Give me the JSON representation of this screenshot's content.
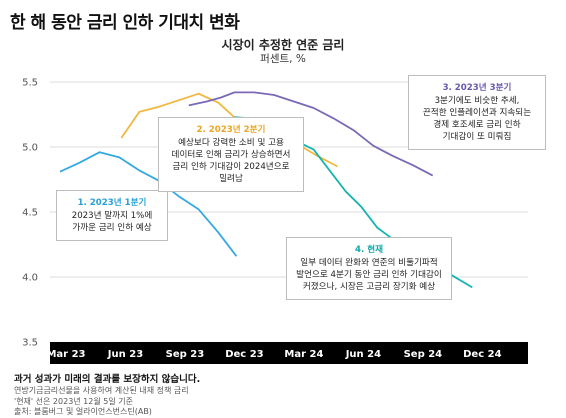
{
  "title": "한 해 동안 금리 인하 기대치 변화",
  "chart_data": {
    "type": "line",
    "title": "시장이 추정한 연준 금리",
    "unit": "퍼센트, %",
    "ylim": [
      3.5,
      5.5
    ],
    "yticks": [
      "3.5",
      "4.0",
      "4.5",
      "5.0",
      "5.5"
    ],
    "xlim": [
      0,
      23
    ],
    "xticks": [
      {
        "x": 0,
        "label": "Mar 23"
      },
      {
        "x": 3,
        "label": "Jun 23"
      },
      {
        "x": 6,
        "label": "Sep 23"
      },
      {
        "x": 9,
        "label": "Dec 23"
      },
      {
        "x": 12,
        "label": "Mar 24"
      },
      {
        "x": 15,
        "label": "Jun 24"
      },
      {
        "x": 18,
        "label": "Sep 24"
      },
      {
        "x": 21,
        "label": "Dec 24"
      }
    ],
    "grid": true,
    "series": [
      {
        "color": "#35a9df",
        "points": [
          [
            0.2,
            4.81
          ],
          [
            1.2,
            4.88
          ],
          [
            2.2,
            4.96
          ],
          [
            3.2,
            4.92
          ],
          [
            4.2,
            4.82
          ],
          [
            5.2,
            4.74
          ],
          [
            6.2,
            4.62
          ],
          [
            7.2,
            4.52
          ],
          [
            8.2,
            4.34
          ],
          [
            9.1,
            4.16
          ]
        ]
      },
      {
        "color": "#f1b73e",
        "points": [
          [
            3.3,
            5.07
          ],
          [
            4.2,
            5.27
          ],
          [
            5.2,
            5.31
          ],
          [
            6.2,
            5.36
          ],
          [
            7.2,
            5.41
          ],
          [
            8.2,
            5.34
          ],
          [
            9.2,
            5.2
          ],
          [
            10.2,
            5.12
          ],
          [
            11.2,
            5.08
          ],
          [
            12.2,
            5.02
          ],
          [
            13.2,
            4.93
          ],
          [
            14.2,
            4.85
          ]
        ]
      },
      {
        "color": "#7b69b6",
        "points": [
          [
            6.7,
            5.32
          ],
          [
            7.6,
            5.35
          ],
          [
            8.3,
            5.38
          ],
          [
            9.0,
            5.42
          ],
          [
            10.0,
            5.42
          ],
          [
            11.0,
            5.4
          ],
          [
            12.0,
            5.35
          ],
          [
            13.0,
            5.3
          ],
          [
            14.0,
            5.22
          ],
          [
            15.0,
            5.13
          ],
          [
            16.0,
            5.01
          ],
          [
            17.0,
            4.93
          ],
          [
            18.0,
            4.86
          ],
          [
            19.0,
            4.78
          ]
        ]
      },
      {
        "color": "#17b3b3",
        "points": [
          [
            9.0,
            5.23
          ],
          [
            9.8,
            5.22
          ],
          [
            10.6,
            5.17
          ],
          [
            11.4,
            5.1
          ],
          [
            12.2,
            5.04
          ],
          [
            13.0,
            4.98
          ],
          [
            13.8,
            4.82
          ],
          [
            14.6,
            4.66
          ],
          [
            15.4,
            4.54
          ],
          [
            16.2,
            4.38
          ],
          [
            17.0,
            4.29
          ],
          [
            18.0,
            4.22
          ],
          [
            19.0,
            4.12
          ],
          [
            20.0,
            4.01
          ],
          [
            21.0,
            3.92
          ]
        ]
      }
    ]
  },
  "annotations": [
    {
      "heading": "1. 2023년 1분기",
      "lines": [
        "2023년 말까지 1%에",
        "가까운 금리 인하 예상"
      ]
    },
    {
      "heading": "2. 2023년 2분기",
      "lines": [
        "예상보다 강력한 소비 및 고용",
        "데이터로 인해 금리가 상승하면서",
        "금리 인하 기대감이 2024년으로",
        "밀려남"
      ]
    },
    {
      "heading": "3. 2023년 3분기",
      "lines": [
        "3분기에도 비슷한 추세,",
        "끈적한 인플레이션과 지속되는",
        "경제 호조세로 금리 인하",
        "기대감이 또 미뤄짐"
      ]
    },
    {
      "heading": "4. 현재",
      "lines": [
        "일부 데이터 완화와 연준의 비둘기파적",
        "발언으로 4분기 동안 금리 인하 기대감이",
        "커졌으나, 시장은 고금리 장기화 예상"
      ]
    }
  ],
  "footer": {
    "disclaimer": "과거 성과가 미래의 결과를 보장하지 않습니다.",
    "note1": "연방기금금리선물을 사용하여 계산된 내재 정책 금리",
    "note2": "'현재' 선은 2023년 12월 5일 기준",
    "source": "출처: 블룸버그 및 얼라이언스번스틴(AB)"
  }
}
